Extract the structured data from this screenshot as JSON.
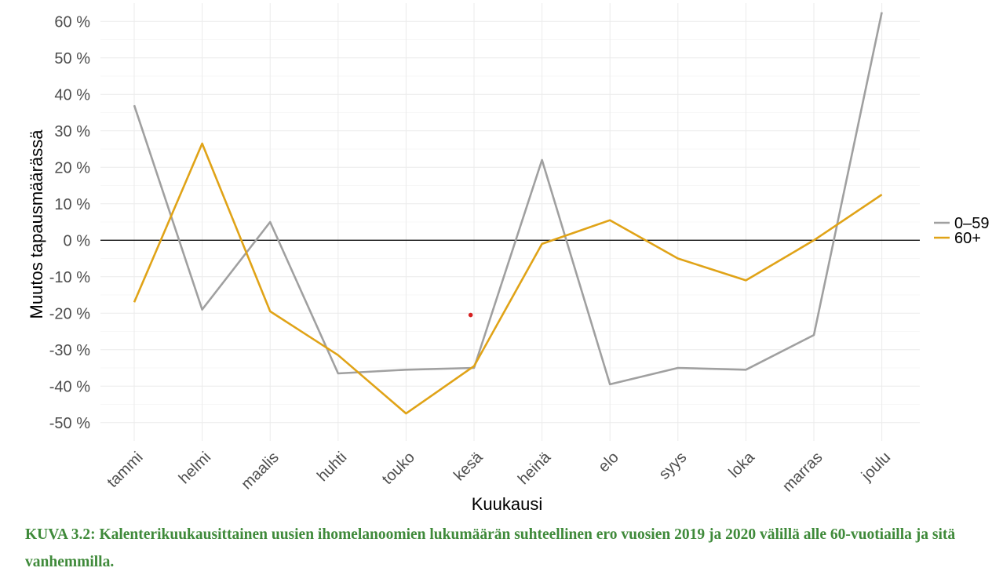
{
  "caption": "KUVA 3.2: Kalenterikuukausittainen uusien ihomelanoomien lukumäärän suhteellinen ero vuosien 2019 ja 2020 välillä alle 60-vuotiailla ja sitä vanhemmilla.",
  "chart_data": {
    "type": "line",
    "title": "",
    "xlabel": "Kuukausi",
    "ylabel": "Muutos tapausmäärässä",
    "categories": [
      "tammi",
      "helmi",
      "maalis",
      "huhti",
      "touko",
      "kesä",
      "heinä",
      "elo",
      "syys",
      "loka",
      "marras",
      "joulu"
    ],
    "ylim": [
      -55,
      65
    ],
    "yticks": [
      -50,
      -40,
      -30,
      -20,
      -10,
      0,
      10,
      20,
      30,
      40,
      50,
      60
    ],
    "ytick_labels": [
      "-50 %",
      "-40 %",
      "-30 %",
      "-20 %",
      "-10 %",
      "0 %",
      "10 %",
      "20 %",
      "30 %",
      "40 %",
      "50 %",
      "60 %"
    ],
    "grid": true,
    "legend_position": "right",
    "series": [
      {
        "name": "0–59",
        "color": "#a0a0a0",
        "values": [
          37,
          -19,
          5,
          -36.5,
          -35.5,
          -35,
          22,
          -39.5,
          -35,
          -35.5,
          -26,
          62.5
        ]
      },
      {
        "name": "60+",
        "color": "#e0a317",
        "values": [
          -17,
          26.5,
          -19.5,
          -31.5,
          -47.5,
          -34.5,
          -1,
          5.5,
          -5,
          -11,
          0,
          12.5
        ]
      }
    ],
    "reference_line": {
      "y": 0,
      "color": "#000000"
    },
    "annotation_point": {
      "x": "kesä",
      "x_offset": -0.05,
      "y": -20.5,
      "color": "#d62020"
    }
  }
}
